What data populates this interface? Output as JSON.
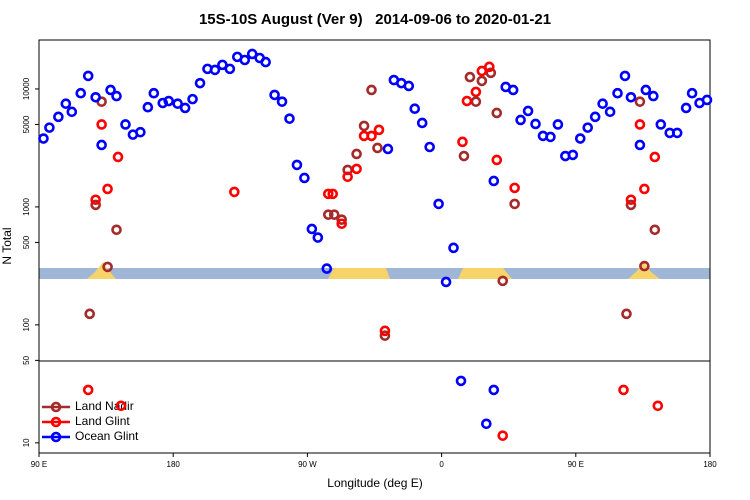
{
  "chart_data": {
    "type": "scatter",
    "title": "15S-10S August (Ver 9)   2014-09-06 to 2020-01-21",
    "x_label": "Longitude (deg E)",
    "y_label": "N Total",
    "log_y": true,
    "legend": "lower left",
    "xlim": [
      90,
      540
    ],
    "xticks": [
      {
        "value": 90,
        "label": "90 E"
      },
      {
        "value": 180,
        "label": "180"
      },
      {
        "value": 270,
        "label": "90 W"
      },
      {
        "value": 360,
        "label": "0"
      },
      {
        "value": 450,
        "label": "90 E"
      },
      {
        "value": 540,
        "label": "180"
      }
    ],
    "ylim": [
      8.2,
      26000
    ],
    "yticks": [
      10,
      50,
      100,
      500,
      1000,
      5000,
      10000
    ],
    "series": [
      {
        "name": "Land Nadir",
        "color": "#a52a2a",
        "x": [
          124,
          128,
          132,
          136,
          142,
          284,
          288,
          293,
          297,
          303,
          308,
          313,
          317,
          322,
          375,
          379,
          383,
          387,
          393,
          397,
          401,
          409,
          484,
          487,
          493,
          496,
          503
        ],
        "values": [
          124,
          1040,
          7800,
          310,
          640,
          860,
          860,
          780,
          2060,
          2810,
          4860,
          9800,
          3160,
          81,
          2700,
          12600,
          7800,
          11700,
          13700,
          6260,
          236,
          1060,
          124,
          1040,
          7800,
          315,
          640
        ]
      },
      {
        "name": "Land Glint",
        "color": "#ff0000",
        "x": [
          123,
          128,
          132,
          136,
          143,
          145,
          221,
          284,
          287,
          293,
          297,
          303,
          308,
          313,
          318,
          322,
          374,
          377,
          383,
          387,
          392,
          397,
          401,
          409,
          482,
          487,
          493,
          496,
          503,
          505
        ],
        "values": [
          28.1,
          1150,
          5000,
          1420,
          2650,
          20.6,
          1340,
          1290,
          1290,
          720,
          1800,
          2100,
          4000,
          4000,
          4500,
          89,
          3560,
          7900,
          9440,
          14200,
          15400,
          2500,
          11.5,
          1450,
          28.1,
          1150,
          5000,
          1420,
          2650,
          20.6
        ]
      },
      {
        "name": "Ocean Glint",
        "color": "#0000ff",
        "x": [
          93,
          97,
          103,
          108,
          112,
          118,
          123,
          128,
          132,
          138,
          142,
          148,
          153,
          158,
          163,
          167,
          173,
          177,
          183,
          188,
          193,
          198,
          203,
          208,
          213,
          218,
          223,
          228,
          233,
          238,
          242,
          248,
          253,
          258,
          263,
          268,
          273,
          277,
          283,
          324,
          328,
          333,
          338,
          342,
          347,
          352,
          358,
          363,
          368,
          373,
          390,
          395,
          395,
          403,
          408,
          413,
          418,
          423,
          428,
          433,
          438,
          443,
          448,
          453,
          458,
          463,
          468,
          473,
          478,
          483,
          487,
          493,
          497,
          502,
          507,
          513,
          518,
          524,
          528,
          533,
          538
        ],
        "values": [
          3800,
          4700,
          5800,
          7500,
          6400,
          9200,
          12900,
          8500,
          3350,
          9800,
          8700,
          5000,
          4100,
          4300,
          7000,
          9200,
          7600,
          7900,
          7500,
          6900,
          8200,
          11200,
          14800,
          14500,
          16000,
          14800,
          18700,
          17600,
          19800,
          18300,
          16900,
          8900,
          7800,
          5600,
          2270,
          1760,
          650,
          550,
          300,
          3100,
          11900,
          11200,
          10600,
          6800,
          5150,
          3220,
          1060,
          231,
          450,
          33.5,
          14.5,
          28.1,
          1660,
          10400,
          9800,
          5460,
          6510,
          5050,
          4000,
          3920,
          5000,
          2700,
          2760,
          3800,
          4700,
          5800,
          7500,
          6400,
          9200,
          12900,
          8500,
          3350,
          9800,
          8700,
          5000,
          4240,
          4240,
          6900,
          9200,
          7600,
          8070
        ]
      }
    ]
  }
}
